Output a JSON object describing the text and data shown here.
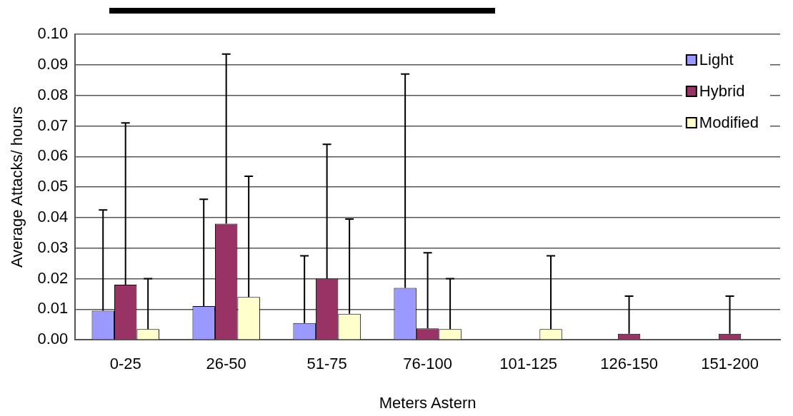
{
  "chart_data": {
    "type": "bar",
    "xlabel": "Meters Astern",
    "ylabel": "Average Attacks/ hours",
    "categories": [
      "0-25",
      "26-50",
      "51-75",
      "76-100",
      "101-125",
      "126-150",
      "151-200"
    ],
    "series": [
      {
        "name": "Light",
        "color": "#9999ff",
        "values": [
          0.0095,
          0.011,
          0.0055,
          0.017,
          0,
          0,
          0
        ],
        "errors": [
          [
            0.0095,
            0.0425
          ],
          [
            0.011,
            0.046
          ],
          [
            0.0055,
            0.0275
          ],
          [
            0.017,
            0.087
          ],
          null,
          null,
          null
        ]
      },
      {
        "name": "Hybrid",
        "color": "#993366",
        "values": [
          0.018,
          0.038,
          0.02,
          0.0037,
          0,
          0.002,
          0.002
        ],
        "errors": [
          [
            0.018,
            0.071
          ],
          [
            0.038,
            0.0935
          ],
          [
            0.02,
            0.064
          ],
          [
            0.0037,
            0.0285
          ],
          null,
          [
            0.002,
            0.0143
          ],
          [
            0.002,
            0.0143
          ]
        ]
      },
      {
        "name": "Modified",
        "color": "#ffffcc",
        "values": [
          0.0035,
          0.014,
          0.0085,
          0.0035,
          0.0035,
          0,
          0
        ],
        "errors": [
          [
            0.0035,
            0.02
          ],
          [
            0.014,
            0.0535
          ],
          [
            0.0085,
            0.0395
          ],
          [
            0.0035,
            0.02
          ],
          [
            0.0035,
            0.0275
          ],
          null,
          null
        ]
      }
    ],
    "ylim": [
      0,
      0.1
    ],
    "yticks": [
      {
        "value": 0,
        "label": "0.00"
      },
      {
        "value": 0.01,
        "label": "0.01"
      },
      {
        "value": 0.02,
        "label": "0.02"
      },
      {
        "value": 0.03,
        "label": "0.03"
      },
      {
        "value": 0.04,
        "label": "0.04"
      },
      {
        "value": 0.05,
        "label": "0.05"
      },
      {
        "value": 0.06,
        "label": "0.06"
      },
      {
        "value": 0.07,
        "label": "0.07"
      },
      {
        "value": 0.08,
        "label": "0.08"
      },
      {
        "value": 0.09,
        "label": "0.09"
      },
      {
        "value": 0.1,
        "label": "0.10"
      }
    ],
    "grid": "y",
    "legend": "top right"
  }
}
